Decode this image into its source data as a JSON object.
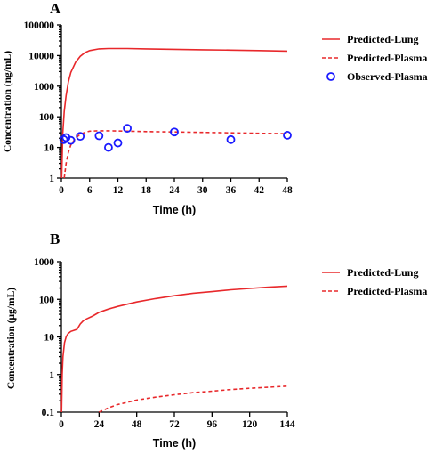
{
  "chart_data": [
    {
      "panel": "A",
      "type": "line",
      "xlabel": "Time (h)",
      "ylabel": "Concentration (ng/mL)",
      "xlim": [
        0,
        48
      ],
      "ylim": [
        1,
        100000
      ],
      "yscale": "log",
      "xticks": [
        0,
        6,
        12,
        18,
        24,
        30,
        36,
        42,
        48
      ],
      "xtick_labels": [
        "0",
        "6",
        "12",
        "18",
        "24",
        "30",
        "36",
        "42",
        "48"
      ],
      "yticks": [
        1,
        10,
        100,
        1000,
        10000,
        100000
      ],
      "ytick_labels": [
        "1",
        "10",
        "100",
        "1000",
        "10000",
        "100000"
      ],
      "legend_position": "right",
      "series": [
        {
          "name": "Predicted-Lung",
          "style": "solid",
          "color": "#e8282b",
          "x": [
            0.05,
            0.3,
            0.6,
            1,
            1.5,
            2,
            3,
            4,
            5,
            6,
            8,
            10,
            14,
            18,
            24,
            30,
            36,
            42,
            48
          ],
          "y": [
            1,
            30,
            150,
            500,
            1400,
            2800,
            6000,
            9500,
            12500,
            14500,
            16500,
            17000,
            17000,
            16500,
            16000,
            15500,
            15000,
            14500,
            14000
          ]
        },
        {
          "name": "Predicted-Plasma",
          "style": "dashed",
          "color": "#e8282b",
          "x": [
            0.6,
            1,
            1.5,
            2,
            3,
            4,
            5,
            6,
            8,
            10,
            14,
            18,
            24,
            30,
            36,
            42,
            48
          ],
          "y": [
            1,
            3,
            7,
            12,
            20,
            27,
            31,
            34,
            35,
            35,
            34,
            33,
            32,
            31,
            30,
            29,
            28
          ]
        },
        {
          "name": "Observed-Plasma",
          "style": "markers",
          "color": "#1a1aff",
          "x": [
            0.5,
            1,
            2,
            4,
            8,
            10,
            12,
            14,
            24,
            36,
            48
          ],
          "y": [
            18,
            21,
            17,
            23,
            24,
            10,
            14,
            42,
            32,
            18,
            25
          ]
        }
      ]
    },
    {
      "panel": "B",
      "type": "line",
      "xlabel": "Time (h)",
      "ylabel": "Concentration (μg/mL)",
      "xlim": [
        0,
        144
      ],
      "ylim": [
        0.1,
        1000
      ],
      "yscale": "log",
      "xticks": [
        0,
        24,
        48,
        72,
        96,
        120,
        144
      ],
      "xtick_labels": [
        "0",
        "24",
        "48",
        "72",
        "96",
        "120",
        "144"
      ],
      "yticks": [
        0.1,
        1,
        10,
        100,
        1000
      ],
      "ytick_labels": [
        "0.1",
        "1",
        "10",
        "100",
        "1000"
      ],
      "legend_position": "right",
      "series": [
        {
          "name": "Predicted-Lung",
          "style": "solid",
          "color": "#e8282b",
          "x": [
            0.1,
            0.5,
            1,
            2,
            3,
            4,
            5,
            6,
            8,
            10,
            12,
            14,
            16,
            20,
            24,
            30,
            36,
            48,
            60,
            72,
            84,
            96,
            108,
            120,
            132,
            144
          ],
          "y": [
            0.1,
            1,
            3,
            7,
            10,
            12,
            13,
            14,
            15,
            16,
            22,
            27,
            30,
            36,
            45,
            55,
            65,
            85,
            105,
            125,
            145,
            160,
            180,
            195,
            210,
            225
          ]
        },
        {
          "name": "Predicted-Plasma",
          "style": "dashed",
          "color": "#e8282b",
          "x": [
            24,
            30,
            36,
            48,
            60,
            72,
            84,
            96,
            108,
            120,
            132,
            144
          ],
          "y": [
            0.1,
            0.13,
            0.16,
            0.21,
            0.25,
            0.29,
            0.33,
            0.36,
            0.4,
            0.43,
            0.46,
            0.49
          ]
        }
      ]
    }
  ]
}
